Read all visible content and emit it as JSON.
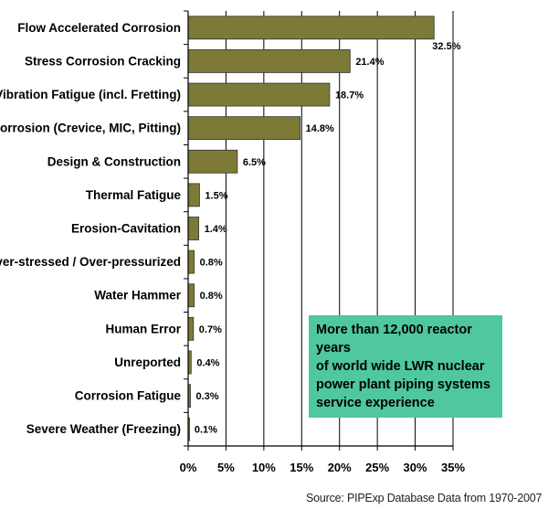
{
  "chart_data": {
    "type": "bar",
    "orientation": "horizontal",
    "title": "",
    "xlabel": "",
    "ylabel": "",
    "categories": [
      "Flow Accelerated Corrosion",
      "Stress Corrosion Cracking",
      "Vibration Fatigue (incl. Fretting)",
      "Corrosion (Crevice, MIC, Pitting)",
      "Design & Construction",
      "Thermal Fatigue",
      "Erosion-Cavitation",
      "Over-stressed / Over-pressurized",
      "Water Hammer",
      "Human Error",
      "Unreported",
      "Corrosion Fatigue",
      "Severe Weather (Freezing)"
    ],
    "values": [
      32.5,
      21.4,
      18.7,
      14.8,
      6.5,
      1.5,
      1.4,
      0.8,
      0.8,
      0.7,
      0.4,
      0.3,
      0.1
    ],
    "value_labels": [
      "32.5%",
      "21.4%",
      "18.7%",
      "14.8%",
      "6.5%",
      "1.5%",
      "1.4%",
      "0.8%",
      "0.8%",
      "0.7%",
      "0.4%",
      "0.3%",
      "0.1%"
    ],
    "xlim": [
      0,
      35
    ],
    "xticks": [
      0,
      5,
      10,
      15,
      20,
      25,
      30,
      35
    ],
    "xtick_labels": [
      "0%",
      "5%",
      "10%",
      "15%",
      "20%",
      "25%",
      "30%",
      "35%"
    ],
    "grid": "vertical",
    "bar_color": "#7d7a37",
    "annotation": {
      "lines": [
        "More than 12,000 reactor years",
        "of world wide LWR nuclear",
        "power plant piping systems",
        "service experience"
      ],
      "background": "#4fc7a1"
    },
    "source": "Source:  PIPExp Database Data from 1970-2007"
  }
}
